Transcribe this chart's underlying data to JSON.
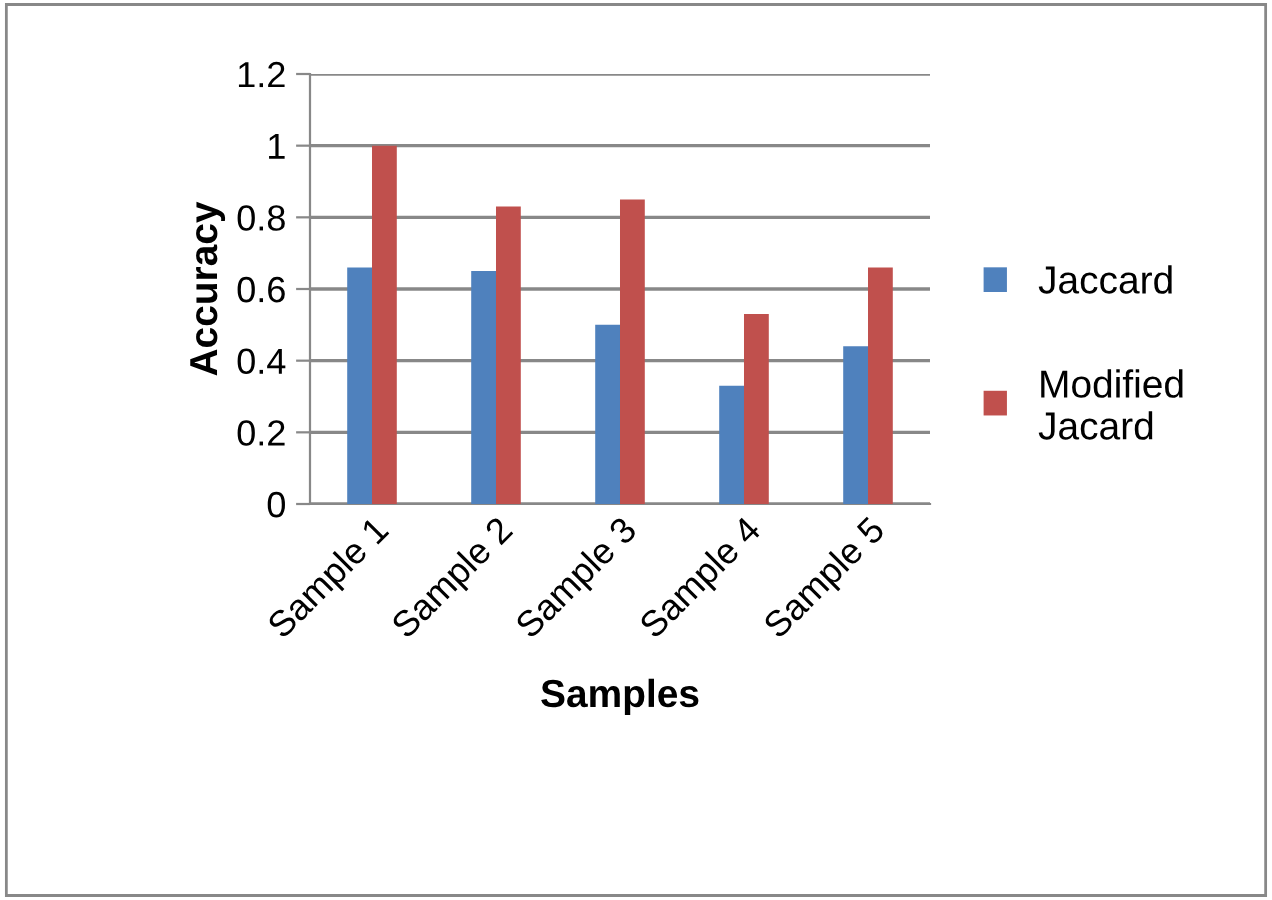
{
  "chart_data": {
    "type": "bar",
    "xlabel": "Samples",
    "ylabel": "Accuracy",
    "categories": [
      "Sample 1",
      "Sample 2",
      "Sample 3",
      "Sample 4",
      "Sample 5"
    ],
    "series": [
      {
        "name": "Jaccard",
        "color": "#4f81bd",
        "values": [
          0.66,
          0.65,
          0.5,
          0.33,
          0.44
        ]
      },
      {
        "name": "Modified Jacard",
        "color": "#c0504d",
        "values": [
          1.0,
          0.83,
          0.85,
          0.53,
          0.66
        ]
      }
    ],
    "ylim": [
      0,
      1.2
    ],
    "yticks": [
      0,
      {
        "value": 0.2,
        "label": "0.2"
      },
      {
        "value": 0.4,
        "label": "0.4"
      },
      {
        "value": 0.6,
        "label": "0.6"
      },
      {
        "value": 0.8,
        "label": "0.8"
      },
      1,
      {
        "value": 1.2,
        "label": "1.2"
      }
    ],
    "grid": "y",
    "legend": "right"
  }
}
